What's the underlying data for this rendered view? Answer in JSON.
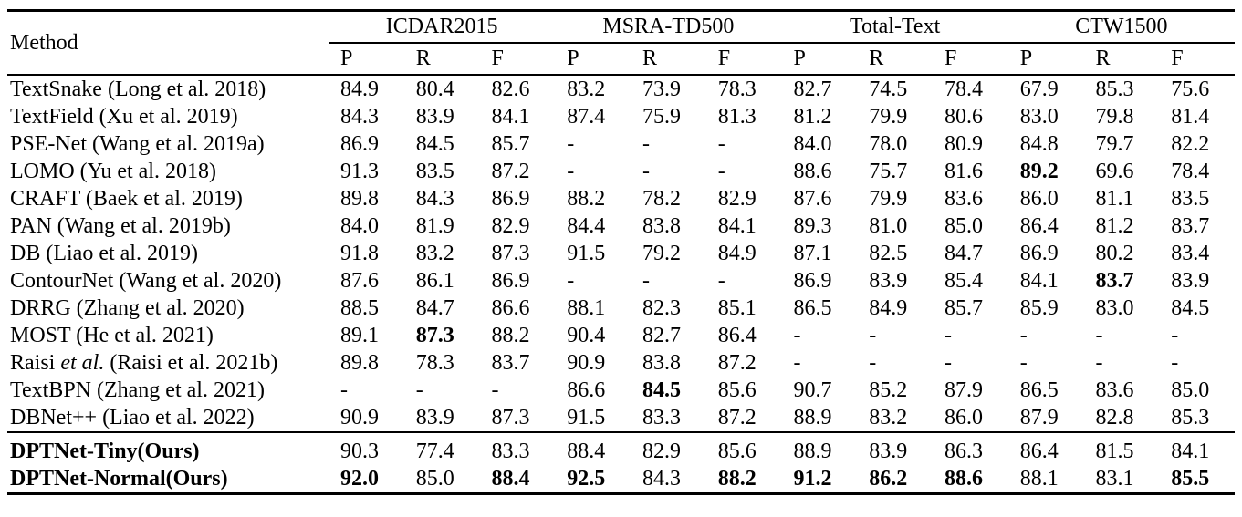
{
  "table": {
    "method_header": "Method",
    "col_groups": [
      "ICDAR2015",
      "MSRA-TD500",
      "Total-Text",
      "CTW1500"
    ],
    "metric_headers": [
      "P",
      "R",
      "F"
    ],
    "rows": [
      {
        "method": "TextSnake (Long et al. 2018)",
        "values": [
          "84.9",
          "80.4",
          "82.6",
          "83.2",
          "73.9",
          "78.3",
          "82.7",
          "74.5",
          "78.4",
          "67.9",
          "85.3",
          "75.6"
        ],
        "bold": []
      },
      {
        "method": "TextField (Xu et al. 2019)",
        "values": [
          "84.3",
          "83.9",
          "84.1",
          "87.4",
          "75.9",
          "81.3",
          "81.2",
          "79.9",
          "80.6",
          "83.0",
          "79.8",
          "81.4"
        ],
        "bold": []
      },
      {
        "method": "PSE-Net (Wang et al. 2019a)",
        "values": [
          "86.9",
          "84.5",
          "85.7",
          "-",
          "-",
          "-",
          "84.0",
          "78.0",
          "80.9",
          "84.8",
          "79.7",
          "82.2"
        ],
        "bold": []
      },
      {
        "method": "LOMO (Yu et al. 2018)",
        "values": [
          "91.3",
          "83.5",
          "87.2",
          "-",
          "-",
          "-",
          "88.6",
          "75.7",
          "81.6",
          "89.2",
          "69.6",
          "78.4"
        ],
        "bold": [
          9
        ]
      },
      {
        "method": "CRAFT (Baek et al. 2019)",
        "values": [
          "89.8",
          "84.3",
          "86.9",
          "88.2",
          "78.2",
          "82.9",
          "87.6",
          "79.9",
          "83.6",
          "86.0",
          "81.1",
          "83.5"
        ],
        "bold": []
      },
      {
        "method": "PAN (Wang et al. 2019b)",
        "values": [
          "84.0",
          "81.9",
          "82.9",
          "84.4",
          "83.8",
          "84.1",
          "89.3",
          "81.0",
          "85.0",
          "86.4",
          "81.2",
          "83.7"
        ],
        "bold": []
      },
      {
        "method": "DB (Liao et al. 2019)",
        "values": [
          "91.8",
          "83.2",
          "87.3",
          "91.5",
          "79.2",
          "84.9",
          "87.1",
          "82.5",
          "84.7",
          "86.9",
          "80.2",
          "83.4"
        ],
        "bold": []
      },
      {
        "method": "ContourNet (Wang et al. 2020)",
        "values": [
          "87.6",
          "86.1",
          "86.9",
          "-",
          "-",
          "-",
          "86.9",
          "83.9",
          "85.4",
          "84.1",
          "83.7",
          "83.9"
        ],
        "bold": [
          10
        ]
      },
      {
        "method": "DRRG (Zhang et al. 2020)",
        "values": [
          "88.5",
          "84.7",
          "86.6",
          "88.1",
          "82.3",
          "85.1",
          "86.5",
          "84.9",
          "85.7",
          "85.9",
          "83.0",
          "84.5"
        ],
        "bold": []
      },
      {
        "method": "MOST (He et al. 2021)",
        "values": [
          "89.1",
          "87.3",
          "88.2",
          "90.4",
          "82.7",
          "86.4",
          "-",
          "-",
          "-",
          "-",
          "-",
          "-"
        ],
        "bold": [
          1
        ]
      },
      {
        "method": [
          {
            "text": "Raisi ",
            "italic": false
          },
          {
            "text": "et al.",
            "italic": true
          },
          {
            "text": " (Raisi et al. 2021b)",
            "italic": false
          }
        ],
        "values": [
          "89.8",
          "78.3",
          "83.7",
          "90.9",
          "83.8",
          "87.2",
          "-",
          "-",
          "-",
          "-",
          "-",
          "-"
        ],
        "bold": []
      },
      {
        "method": "TextBPN (Zhang et al. 2021)",
        "values": [
          "-",
          "-",
          "-",
          "86.6",
          "84.5",
          "85.6",
          "90.7",
          "85.2",
          "87.9",
          "86.5",
          "83.6",
          "85.0"
        ],
        "bold": [
          4
        ]
      },
      {
        "method": "DBNet++ (Liao et al. 2022)",
        "values": [
          "90.9",
          "83.9",
          "87.3",
          "91.5",
          "83.3",
          "87.2",
          "88.9",
          "83.2",
          "86.0",
          "87.9",
          "82.8",
          "85.3"
        ],
        "bold": []
      }
    ],
    "ours_rows": [
      {
        "method": "DPTNet-Tiny(Ours)",
        "bold_method": true,
        "values": [
          "90.3",
          "77.4",
          "83.3",
          "88.4",
          "82.9",
          "85.6",
          "88.9",
          "83.9",
          "86.3",
          "86.4",
          "81.5",
          "84.1"
        ],
        "bold": []
      },
      {
        "method": "DPTNet-Normal(Ours)",
        "bold_method": true,
        "values": [
          "92.0",
          "85.0",
          "88.4",
          "92.5",
          "84.3",
          "88.2",
          "91.2",
          "86.2",
          "88.6",
          "88.1",
          "83.1",
          "85.5"
        ],
        "bold": [
          0,
          2,
          3,
          5,
          6,
          7,
          8,
          11
        ]
      }
    ]
  }
}
